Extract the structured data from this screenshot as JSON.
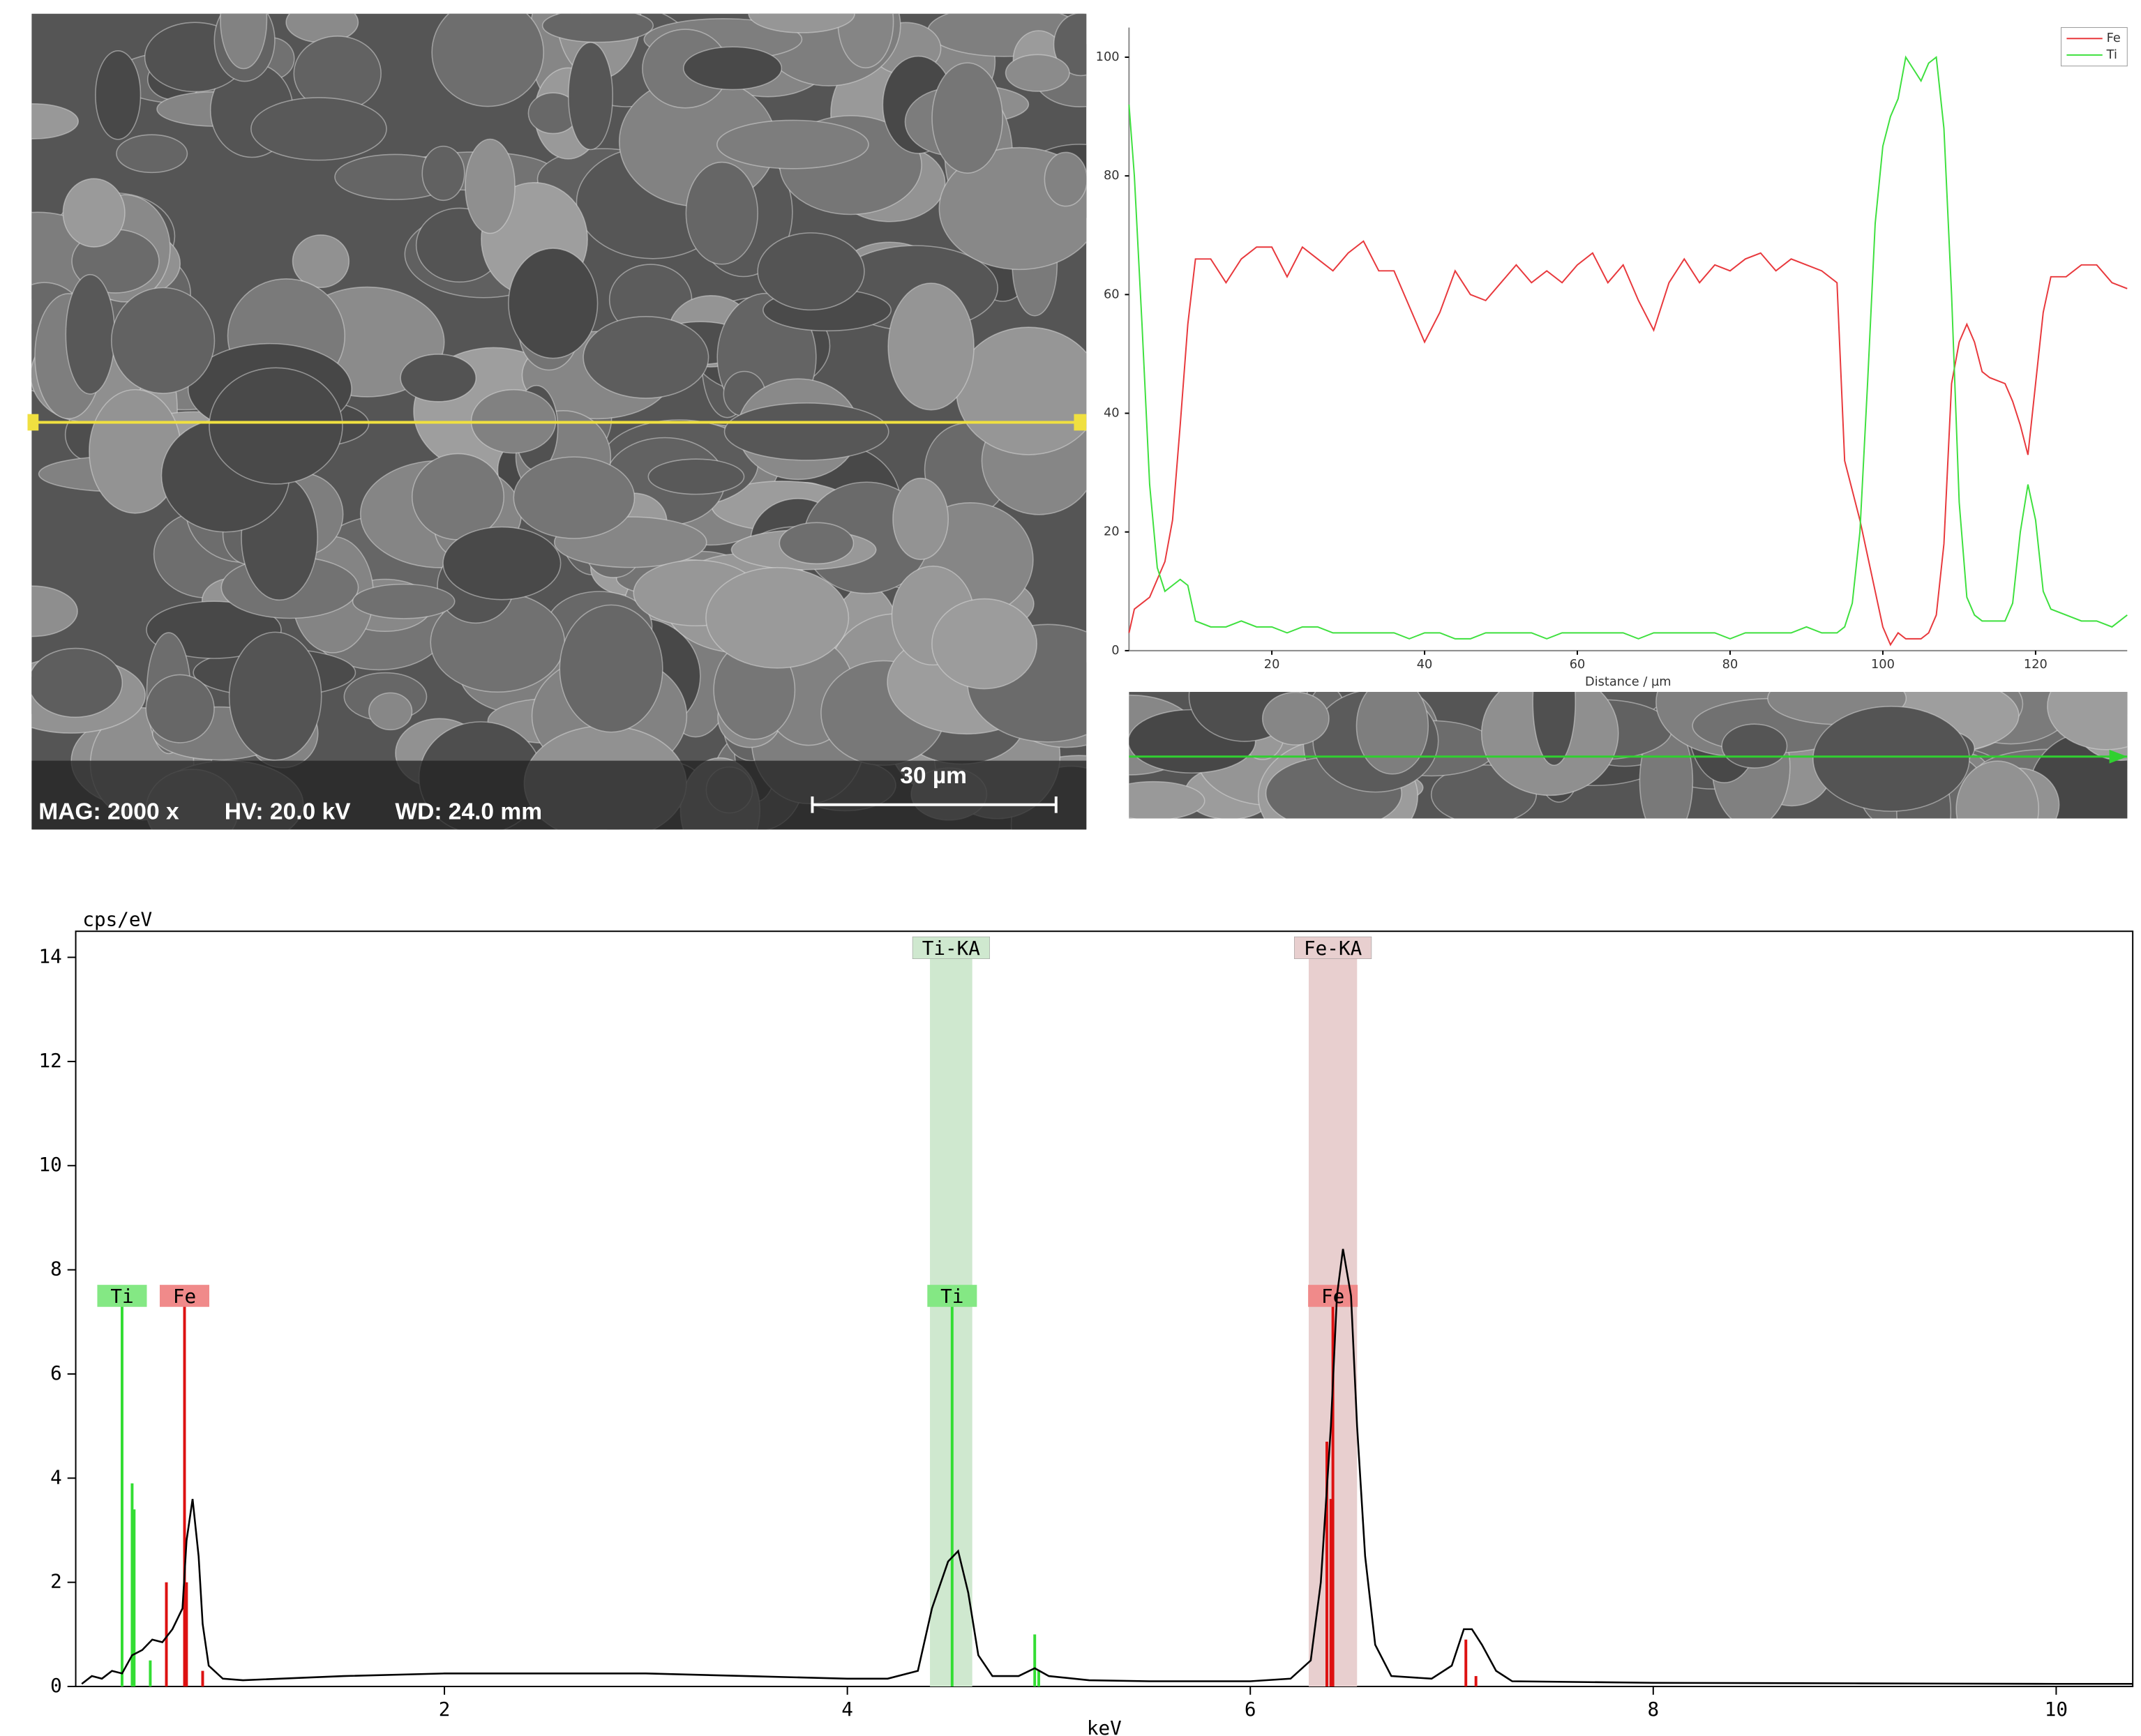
{
  "sem_image": {
    "labels": [
      "MAG: 2000 x",
      "HV: 20.0 kV",
      "WD: 24.0 mm"
    ],
    "scale_bar": "30 µm"
  },
  "chart_data": [
    {
      "type": "line",
      "xlabel": "Distance / µm",
      "x": [
        1.3,
        2,
        3,
        4,
        5,
        6,
        7,
        8,
        9,
        10,
        12,
        14,
        16,
        18,
        20,
        22,
        24,
        26,
        28,
        30,
        32,
        34,
        36,
        38,
        40,
        42,
        44,
        46,
        48,
        50,
        52,
        54,
        56,
        58,
        60,
        62,
        64,
        66,
        68,
        70,
        72,
        74,
        76,
        78,
        80,
        82,
        84,
        86,
        88,
        90,
        92,
        94,
        95,
        96,
        97,
        98,
        99,
        100,
        101,
        102,
        103,
        104,
        105,
        106,
        107,
        108,
        109,
        110,
        111,
        112,
        113,
        114,
        116,
        117,
        118,
        119,
        120,
        121,
        122,
        124,
        126,
        128,
        130,
        132
      ],
      "series": [
        {
          "name": "Fe",
          "color": "#e8383c",
          "values": [
            3,
            7,
            8,
            9,
            12,
            15,
            22,
            38,
            55,
            66,
            66,
            62,
            66,
            68,
            68,
            63,
            68,
            66,
            64,
            67,
            69,
            64,
            64,
            58,
            52,
            57,
            64,
            60,
            59,
            62,
            65,
            62,
            64,
            62,
            65,
            67,
            62,
            65,
            59,
            54,
            62,
            66,
            62,
            65,
            64,
            66,
            67,
            64,
            66,
            65,
            64,
            62,
            32,
            27,
            22,
            16,
            10,
            4,
            1,
            3,
            2,
            2,
            2,
            3,
            6,
            18,
            45,
            52,
            55,
            52,
            47,
            46,
            45,
            42,
            38,
            33,
            45,
            57,
            63,
            63,
            65,
            65,
            62,
            61
          ]
        },
        {
          "name": "Ti",
          "color": "#3ee03e",
          "values": [
            92,
            80,
            55,
            28,
            14,
            10,
            11,
            12,
            11,
            5,
            4,
            4,
            5,
            4,
            4,
            3,
            4,
            4,
            3,
            3,
            3,
            3,
            3,
            2,
            3,
            3,
            2,
            2,
            3,
            3,
            3,
            3,
            2,
            3,
            3,
            3,
            3,
            3,
            2,
            3,
            3,
            3,
            3,
            3,
            2,
            3,
            3,
            3,
            3,
            4,
            3,
            3,
            4,
            8,
            20,
            45,
            72,
            85,
            90,
            93,
            100,
            98,
            96,
            99,
            100,
            88,
            60,
            25,
            9,
            6,
            5,
            5,
            5,
            8,
            20,
            28,
            22,
            10,
            7,
            6,
            5,
            5,
            4,
            6
          ]
        }
      ],
      "xlim": [
        1.3,
        132
      ],
      "ylim": [
        0,
        105
      ],
      "xticks": [
        20,
        40,
        60,
        80,
        100,
        120
      ],
      "yticks": [
        0,
        20,
        40,
        60,
        80,
        100
      ],
      "legend": "upper right"
    },
    {
      "type": "line",
      "xlabel": "keV",
      "ylabel": "cps/eV",
      "x": [
        0.2,
        0.25,
        0.3,
        0.35,
        0.4,
        0.45,
        0.5,
        0.55,
        0.6,
        0.65,
        0.7,
        0.72,
        0.75,
        0.78,
        0.8,
        0.83,
        0.9,
        1.0,
        1.5,
        2,
        2.5,
        3,
        3.5,
        4,
        4.2,
        4.35,
        4.42,
        4.5,
        4.55,
        4.6,
        4.65,
        4.72,
        4.85,
        4.93,
        5.0,
        5.2,
        5.5,
        6.0,
        6.2,
        6.3,
        6.35,
        6.4,
        6.43,
        6.46,
        6.5,
        6.53,
        6.57,
        6.62,
        6.7,
        6.9,
        7.0,
        7.06,
        7.1,
        7.15,
        7.22,
        7.3,
        8,
        9,
        10,
        10.38
      ],
      "series": [
        {
          "color": "#000000",
          "values": [
            0.05,
            0.2,
            0.15,
            0.3,
            0.25,
            0.6,
            0.7,
            0.9,
            0.85,
            1.1,
            1.5,
            2.8,
            3.6,
            2.5,
            1.2,
            0.4,
            0.15,
            0.12,
            0.2,
            0.25,
            0.25,
            0.25,
            0.2,
            0.15,
            0.15,
            0.3,
            1.5,
            2.4,
            2.6,
            1.8,
            0.6,
            0.2,
            0.2,
            0.35,
            0.2,
            0.12,
            0.1,
            0.1,
            0.15,
            0.5,
            2.0,
            5.0,
            7.5,
            8.4,
            7.5,
            5.0,
            2.5,
            0.8,
            0.2,
            0.15,
            0.4,
            1.1,
            1.1,
            0.8,
            0.3,
            0.1,
            0.07,
            0.06,
            0.05,
            0.05
          ]
        }
      ],
      "xlim": [
        0.17,
        10.38
      ],
      "ylim": [
        0,
        14.5
      ],
      "xticks": [
        2,
        4,
        6,
        8,
        10
      ],
      "yticks": [
        0,
        2,
        4,
        6,
        8,
        10,
        12,
        14
      ],
      "regions": [
        {
          "label": "Ti-KA",
          "range": [
            4.41,
            4.62
          ],
          "color": "#cfe8cf"
        },
        {
          "label": "Fe-KA",
          "range": [
            6.29,
            6.53
          ],
          "color": "#e8cfcf"
        }
      ],
      "element_lines": [
        {
          "label": "Ti",
          "color": "#33dd33",
          "box_color": "#84e884",
          "label_y": 7.5,
          "x": [
            0.4,
            0.45,
            0.46,
            0.54
          ],
          "values": [
            7.3,
            3.9,
            3.4,
            0.5
          ]
        },
        {
          "label": "Fe",
          "color": "#dd1111",
          "box_color": "#f08a8a",
          "label_y": 7.5,
          "x": [
            0.62,
            0.71,
            0.72,
            0.8
          ],
          "values": [
            2.0,
            7.3,
            2.0,
            0.3
          ]
        },
        {
          "label": "Ti",
          "color": "#33dd33",
          "box_color": "#84e884",
          "label_y": 7.5,
          "x": [
            4.52,
            4.93,
            4.95
          ],
          "values": [
            7.3,
            1.0,
            0.3
          ]
        },
        {
          "label": "Fe",
          "color": "#dd1111",
          "box_color": "#f08a8a",
          "label_y": 7.5,
          "x": [
            6.38,
            6.4,
            6.41,
            7.07,
            7.12
          ],
          "values": [
            4.7,
            3.6,
            7.3,
            0.9,
            0.2
          ]
        }
      ]
    }
  ]
}
